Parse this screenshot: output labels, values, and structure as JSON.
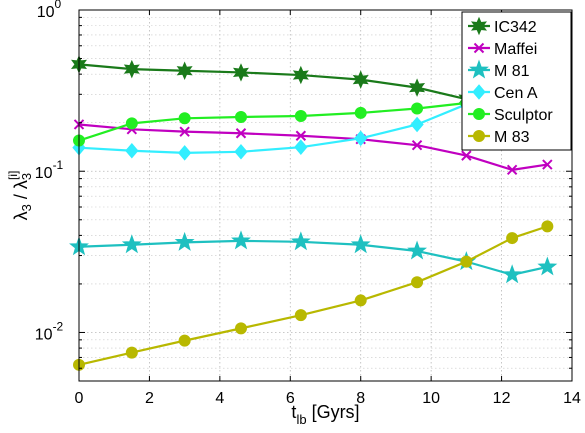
{
  "chart_data": {
    "type": "line",
    "title": "",
    "xlabel": "t_lb [Gyrs]",
    "xlabel_main": "t",
    "xlabel_sub": "lb",
    "xlabel_rest": " [Gyrs]",
    "ylabel": "λ3 / λ3[i]",
    "ylabel_parts": {
      "a": "λ",
      "a_sub": "3",
      "slash": " / ",
      "b": "λ",
      "b_sub": "3",
      "b_sup": "[i]"
    },
    "xlim": [
      0,
      14
    ],
    "ylim": [
      0.005,
      1
    ],
    "yscale": "log",
    "grid": true,
    "legend_position": "top-right",
    "xticks": [
      "0",
      "2",
      "4",
      "6",
      "8",
      "10",
      "12",
      "14"
    ],
    "yticks": [
      {
        "base": "10",
        "exp": "-2",
        "value": 0.01
      },
      {
        "base": "10",
        "exp": "-1",
        "value": 0.1
      },
      {
        "base": "10",
        "exp": "0",
        "value": 1
      }
    ],
    "series": [
      {
        "name": "IC342",
        "color": "#1a7a1a",
        "marker": "hexagram",
        "x": [
          0,
          1.5,
          3.0,
          4.6,
          6.3,
          8.0,
          9.6,
          11.0
        ],
        "y": [
          0.46,
          0.43,
          0.42,
          0.41,
          0.395,
          0.37,
          0.33,
          0.28
        ]
      },
      {
        "name": "Maffei",
        "color": "#c000c0",
        "marker": "x",
        "x": [
          0,
          1.5,
          3.0,
          4.6,
          6.3,
          8.0,
          9.6,
          11.0,
          12.3,
          13.3
        ],
        "y": [
          0.195,
          0.182,
          0.176,
          0.172,
          0.166,
          0.158,
          0.145,
          0.125,
          0.102,
          0.11
        ]
      },
      {
        "name": "M 81",
        "color": "#1ec0c0",
        "marker": "pentagram",
        "x": [
          0,
          1.5,
          3.0,
          4.6,
          6.3,
          8.0,
          9.6,
          11.0,
          12.3,
          13.3
        ],
        "y": [
          0.034,
          0.035,
          0.0362,
          0.037,
          0.0365,
          0.035,
          0.032,
          0.0275,
          0.0228,
          0.0255
        ]
      },
      {
        "name": "Cen A",
        "color": "#33eeff",
        "marker": "diamond",
        "x": [
          0,
          1.5,
          3.0,
          4.6,
          6.3,
          8.0,
          9.6,
          11.0
        ],
        "y": [
          0.14,
          0.134,
          0.13,
          0.132,
          0.141,
          0.16,
          0.195,
          0.26
        ]
      },
      {
        "name": "Sculptor",
        "color": "#22ee22",
        "marker": "circle",
        "x": [
          0,
          1.5,
          3.0,
          4.6,
          6.3,
          8.0,
          9.6,
          11.0
        ],
        "y": [
          0.155,
          0.198,
          0.213,
          0.217,
          0.22,
          0.23,
          0.245,
          0.265
        ]
      },
      {
        "name": "M 83",
        "color": "#b8b800",
        "marker": "circle",
        "x": [
          0,
          1.5,
          3.0,
          4.6,
          6.3,
          8.0,
          9.6,
          11.0,
          12.3,
          13.3
        ],
        "y": [
          0.0063,
          0.0075,
          0.0089,
          0.0106,
          0.0128,
          0.0158,
          0.0205,
          0.0275,
          0.0385,
          0.0455
        ]
      }
    ]
  }
}
